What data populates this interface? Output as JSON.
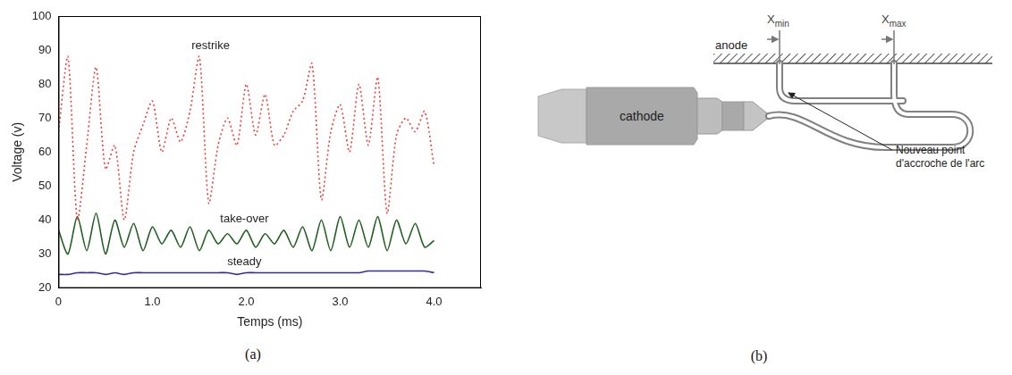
{
  "chart_data": {
    "type": "line",
    "caption": "(a)",
    "x_label": "Temps (ms)",
    "y_label": "Voltage (v)",
    "x": [
      0,
      0.1,
      0.2,
      0.3,
      0.4,
      0.5,
      0.6,
      0.7,
      0.8,
      0.9,
      1.0,
      1.1,
      1.2,
      1.3,
      1.4,
      1.5,
      1.6,
      1.7,
      1.8,
      1.9,
      2.0,
      2.1,
      2.2,
      2.3,
      2.4,
      2.5,
      2.6,
      2.7,
      2.8,
      2.9,
      3.0,
      3.1,
      3.2,
      3.3,
      3.4,
      3.5,
      3.6,
      3.7,
      3.8,
      3.9,
      4.0
    ],
    "xlim": [
      0,
      4.5
    ],
    "xticks": [
      0,
      {
        "value": 1,
        "label": "1.0"
      },
      {
        "value": 2,
        "label": "2.0"
      },
      {
        "value": 3,
        "label": "3.0"
      },
      {
        "value": 4,
        "label": "4.0"
      }
    ],
    "ylim": [
      20,
      100
    ],
    "yticks": [
      20,
      30,
      40,
      50,
      60,
      70,
      80,
      90,
      100
    ],
    "grid": false,
    "series": [
      {
        "name": "restrike",
        "color": "#e8403a",
        "line_style": "dotted",
        "values": [
          66,
          88,
          40,
          62,
          85,
          55,
          62,
          40,
          60,
          68,
          75,
          60,
          70,
          63,
          72,
          88,
          45,
          62,
          70,
          62,
          80,
          65,
          77,
          62,
          65,
          72,
          75,
          86,
          46,
          66,
          74,
          60,
          80,
          62,
          82,
          42,
          65,
          70,
          66,
          72,
          56
        ]
      },
      {
        "name": "take-over",
        "color": "#1f5f1f",
        "line_style": "solid",
        "values": [
          37,
          30,
          41,
          31,
          42,
          30,
          40,
          32,
          39,
          31,
          38,
          33,
          37,
          32,
          38,
          31,
          37,
          33,
          36,
          33,
          37,
          32,
          36,
          33,
          37,
          32,
          38,
          31,
          40,
          31,
          41,
          32,
          40,
          32,
          41,
          31,
          40,
          33,
          39,
          32,
          34
        ]
      },
      {
        "name": "steady",
        "color": "#2f2fa0",
        "line_style": "solid",
        "values": [
          24,
          24,
          24.5,
          24.5,
          24.5,
          24,
          24.5,
          24,
          24.5,
          24.5,
          24.5,
          24.5,
          24.5,
          24.5,
          24.5,
          24.5,
          24.5,
          24.5,
          24.5,
          24,
          24.5,
          24.5,
          24.5,
          24.5,
          24.5,
          24.5,
          24.5,
          24.5,
          24.5,
          24.5,
          24.5,
          24.5,
          24.5,
          25,
          25,
          25,
          25,
          25,
          25,
          25,
          24.5
        ]
      }
    ]
  },
  "diagram": {
    "caption": "(b)",
    "cathode": "cathode",
    "anode": "anode",
    "markers": [
      {
        "base": "X",
        "sub": "min"
      },
      {
        "base": "X",
        "sub": "max"
      }
    ],
    "annotation": "Nouveau point d'accroche de l'arc"
  }
}
